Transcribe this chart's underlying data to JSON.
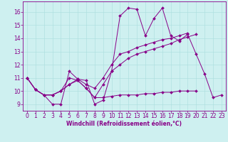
{
  "xlabel": "Windchill (Refroidissement éolien,°C)",
  "ylabel": "",
  "background_color": "#cef0f0",
  "line_color": "#880088",
  "xlim": [
    -0.5,
    23.5
  ],
  "ylim": [
    8.5,
    16.8
  ],
  "xticks": [
    0,
    1,
    2,
    3,
    4,
    5,
    6,
    7,
    8,
    9,
    10,
    11,
    12,
    13,
    14,
    15,
    16,
    17,
    18,
    19,
    20,
    21,
    22,
    23
  ],
  "yticks": [
    9,
    10,
    11,
    12,
    13,
    14,
    15,
    16
  ],
  "series": [
    [
      11.0,
      10.1,
      9.7,
      9.0,
      9.0,
      11.5,
      10.9,
      10.8,
      9.0,
      9.3,
      11.5,
      15.7,
      16.3,
      16.2,
      14.2,
      15.5,
      16.3,
      14.2,
      13.8,
      14.3,
      12.8,
      11.3,
      9.5,
      9.7
    ],
    [
      11.0,
      10.1,
      9.7,
      9.7,
      10.0,
      11.0,
      10.8,
      10.2,
      9.5,
      10.5,
      11.5,
      12.0,
      12.5,
      12.8,
      13.0,
      13.2,
      13.4,
      13.6,
      13.9,
      14.1,
      14.3,
      null,
      null,
      null
    ],
    [
      11.0,
      10.1,
      9.7,
      9.7,
      10.0,
      10.5,
      10.8,
      10.2,
      9.5,
      9.5,
      9.6,
      9.7,
      9.7,
      9.7,
      9.8,
      9.8,
      9.9,
      9.9,
      10.0,
      10.0,
      10.0,
      null,
      null,
      null
    ],
    [
      11.0,
      10.1,
      9.7,
      9.7,
      10.0,
      10.5,
      10.9,
      10.5,
      10.2,
      11.0,
      12.0,
      12.8,
      13.0,
      13.3,
      13.5,
      13.7,
      13.9,
      14.0,
      14.2,
      14.4,
      null,
      null,
      null,
      null
    ]
  ],
  "figsize": [
    3.2,
    2.0
  ],
  "dpi": 100,
  "tick_fontsize": 5.5,
  "xlabel_fontsize": 5.5,
  "marker_size": 2.0,
  "linewidth": 0.7
}
